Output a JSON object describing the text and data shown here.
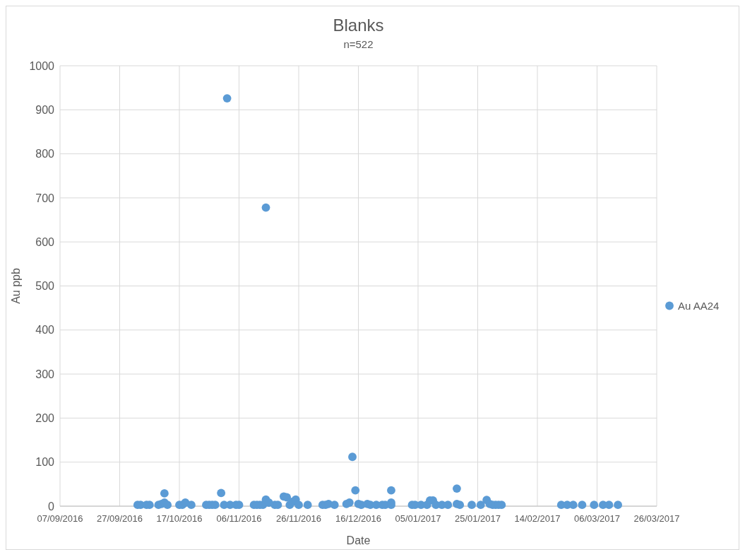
{
  "chart_data": {
    "type": "scatter",
    "title": "Blanks",
    "subtitle": "n=522",
    "xlabel": "Date",
    "ylabel": "Au ppb",
    "xlim": [
      "2016-09-07",
      "2017-03-26"
    ],
    "xticks": [
      {
        "value": "2016-09-07",
        "label": "07/09/2016"
      },
      {
        "value": "2016-09-27",
        "label": "27/09/2016"
      },
      {
        "value": "2016-10-17",
        "label": "17/10/2016"
      },
      {
        "value": "2016-11-06",
        "label": "06/11/2016"
      },
      {
        "value": "2016-11-26",
        "label": "26/11/2016"
      },
      {
        "value": "2016-12-16",
        "label": "16/12/2016"
      },
      {
        "value": "2017-01-05",
        "label": "05/01/2017"
      },
      {
        "value": "2017-01-25",
        "label": "25/01/2017"
      },
      {
        "value": "2017-02-14",
        "label": "14/02/2017"
      },
      {
        "value": "2017-03-06",
        "label": "06/03/2017"
      },
      {
        "value": "2017-03-26",
        "label": "26/03/2017"
      }
    ],
    "ylim": [
      0,
      1000
    ],
    "yticks": [
      0,
      100,
      200,
      300,
      400,
      500,
      600,
      700,
      800,
      900,
      1000
    ],
    "grid": true,
    "legend": "right",
    "marker": "circle",
    "series": [
      {
        "name": "Au AA24",
        "color": "#5b9bd5",
        "x": [
          "2016-10-03",
          "2016-10-04",
          "2016-10-06",
          "2016-10-07",
          "2016-10-10",
          "2016-10-11",
          "2016-10-12",
          "2016-10-12",
          "2016-10-13",
          "2016-10-17",
          "2016-10-18",
          "2016-10-19",
          "2016-10-21",
          "2016-10-26",
          "2016-10-27",
          "2016-10-28",
          "2016-10-29",
          "2016-10-31",
          "2016-11-01",
          "2016-11-02",
          "2016-11-03",
          "2016-11-05",
          "2016-11-06",
          "2016-11-11",
          "2016-11-12",
          "2016-11-13",
          "2016-11-14",
          "2016-11-15",
          "2016-11-16",
          "2016-11-15",
          "2016-11-18",
          "2016-11-19",
          "2016-11-21",
          "2016-11-22",
          "2016-11-23",
          "2016-11-24",
          "2016-11-25",
          "2016-11-26",
          "2016-11-29",
          "2016-12-04",
          "2016-12-05",
          "2016-12-06",
          "2016-12-08",
          "2016-12-12",
          "2016-12-13",
          "2016-12-14",
          "2016-12-15",
          "2016-12-16",
          "2016-12-17",
          "2016-12-19",
          "2016-12-20",
          "2016-12-22",
          "2016-12-24",
          "2016-12-25",
          "2016-12-27",
          "2016-12-27",
          "2016-12-27",
          "2017-01-03",
          "2017-01-04",
          "2017-01-06",
          "2017-01-08",
          "2017-01-09",
          "2017-01-10",
          "2017-01-11",
          "2017-01-13",
          "2017-01-15",
          "2017-01-18",
          "2017-01-18",
          "2017-01-19",
          "2017-01-23",
          "2017-01-26",
          "2017-01-28",
          "2017-01-29",
          "2017-01-30",
          "2017-01-31",
          "2017-02-01",
          "2017-02-02",
          "2017-02-22",
          "2017-02-24",
          "2017-02-26",
          "2017-03-01",
          "2017-03-05",
          "2017-03-08",
          "2017-03-10",
          "2017-03-13"
        ],
        "values": [
          3,
          3,
          3,
          3,
          3,
          5,
          29,
          8,
          3,
          3,
          3,
          8,
          3,
          3,
          3,
          3,
          3,
          30,
          3,
          926,
          3,
          3,
          3,
          3,
          3,
          3,
          3,
          15,
          8,
          678,
          3,
          3,
          22,
          20,
          3,
          10,
          15,
          3,
          3,
          3,
          3,
          5,
          3,
          5,
          8,
          112,
          36,
          5,
          3,
          5,
          3,
          3,
          3,
          3,
          36,
          8,
          3,
          3,
          3,
          3,
          3,
          13,
          13,
          3,
          3,
          3,
          5,
          40,
          3,
          3,
          3,
          14,
          5,
          3,
          3,
          3,
          3,
          3,
          3,
          3,
          3,
          3,
          3,
          3,
          3
        ]
      }
    ]
  }
}
